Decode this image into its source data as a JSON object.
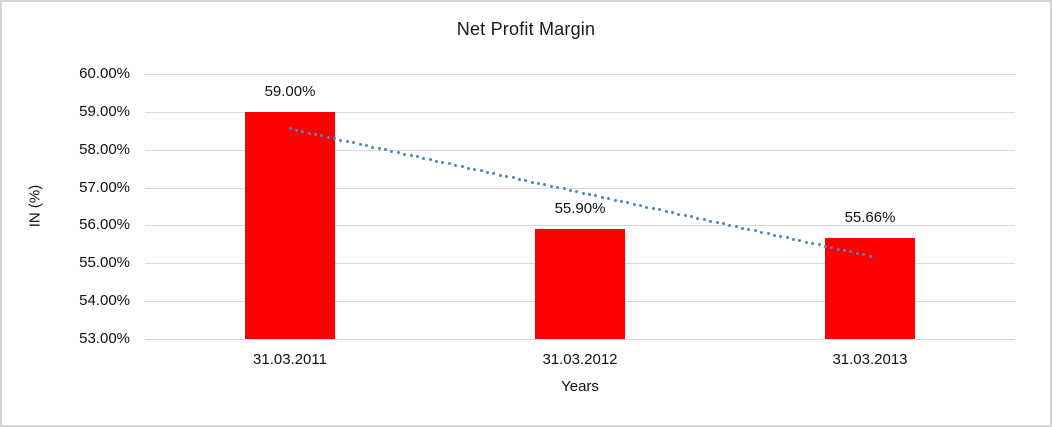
{
  "window": {
    "background_color": "#ffffff",
    "border_color": "#d5d5d5"
  },
  "chart_data": {
    "type": "bar",
    "title": "Net Profit Margin",
    "xlabel": "Years",
    "ylabel": "IN (%)",
    "categories": [
      "31.03.2011",
      "31.03.2012",
      "31.03.2013"
    ],
    "values": [
      59.0,
      55.9,
      55.66
    ],
    "value_labels": [
      "59.00%",
      "55.90%",
      "55.66%"
    ],
    "ylim": [
      53,
      60
    ],
    "ytick_step": 1,
    "ytick_labels": [
      "60.00%",
      "59.00%",
      "58.00%",
      "57.00%",
      "56.00%",
      "55.00%",
      "54.00%",
      "53.00%"
    ],
    "grid": true,
    "legend": "none",
    "bar_color": "#ff0000",
    "gridline_color": "#d9d9d9",
    "text_color": "#111111",
    "trendline": {
      "style": "dotted",
      "color": "#4a86c6",
      "start": {
        "category_index": 0,
        "value": 58.55
      },
      "end": {
        "category_index": 2,
        "value": 55.19
      }
    }
  }
}
